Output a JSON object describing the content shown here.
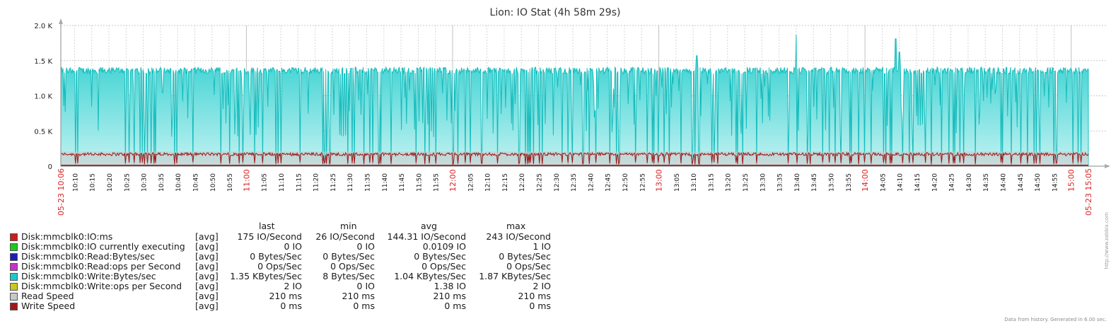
{
  "chart_data": {
    "type": "area",
    "title": "Lion: IO Stat (4h 58m 29s)",
    "x_start": "10:06",
    "x_end": "15:05",
    "x_start_label": "05-23 10:06",
    "x_end_label": "05-23 15:05",
    "x_ticks": [
      "10:10",
      "10:15",
      "10:20",
      "10:25",
      "10:30",
      "10:35",
      "10:40",
      "10:45",
      "10:50",
      "10:55",
      "11:00",
      "11:05",
      "11:10",
      "11:15",
      "11:20",
      "11:25",
      "11:30",
      "11:35",
      "11:40",
      "11:45",
      "11:50",
      "11:55",
      "12:00",
      "12:05",
      "12:10",
      "12:15",
      "12:20",
      "12:25",
      "12:30",
      "12:35",
      "12:40",
      "12:45",
      "12:50",
      "12:55",
      "13:00",
      "13:05",
      "13:10",
      "13:15",
      "13:20",
      "13:25",
      "13:30",
      "13:35",
      "13:40",
      "13:45",
      "13:50",
      "13:55",
      "14:00",
      "14:05",
      "14:10",
      "14:15",
      "14:20",
      "14:25",
      "14:30",
      "14:35",
      "14:40",
      "14:45",
      "14:50",
      "14:55",
      "15:00"
    ],
    "y_ticks": [
      {
        "value": 0,
        "label": "0"
      },
      {
        "value": 500,
        "label": "0.5 K"
      },
      {
        "value": 1000,
        "label": "1.0 K"
      },
      {
        "value": 1500,
        "label": "1.5 K"
      },
      {
        "value": 2000,
        "label": "2.0 K"
      }
    ],
    "ylim": [
      0,
      2000
    ],
    "grid": true,
    "legend_position": "bottom",
    "series": [
      {
        "name": "Disk:mmcblk0:Write:Bytes/sec",
        "approx_plateau": 1380,
        "min": 8,
        "max": 1870,
        "avg": 1040,
        "color": "#1ec8c8"
      },
      {
        "name": "Disk:mmcblk0:IO:ms",
        "approx_level": 175,
        "min": 26,
        "max": 243,
        "avg": 144.31,
        "color": "#a01818"
      },
      {
        "name": "Read Speed",
        "approx_level": 210,
        "color": "#c8c8c8"
      }
    ],
    "peaks": [
      {
        "time": "13:11",
        "value": 1570
      },
      {
        "time": "13:40",
        "value": 1870
      },
      {
        "time": "14:09",
        "value": 1810
      },
      {
        "time": "14:10",
        "value": 1620
      }
    ]
  },
  "legend": {
    "headers": {
      "last": "last",
      "min": "min",
      "avg": "avg",
      "max": "max"
    },
    "items": [
      {
        "name": "Disk:mmcblk0:IO:ms",
        "func": "[avg]",
        "last": "175 IO/Second",
        "min": "26 IO/Second",
        "avg": "144.31 IO/Second",
        "max": "243 IO/Second",
        "color": "#c81e1e"
      },
      {
        "name": "Disk:mmcblk0:IO currently executing",
        "func": "[avg]",
        "last": "0 IO",
        "min": "0 IO",
        "avg": "0.0109 IO",
        "max": "1 IO",
        "color": "#1ec81e"
      },
      {
        "name": "Disk:mmcblk0:Read:Bytes/sec",
        "func": "[avg]",
        "last": "0 Bytes/Sec",
        "min": "0 Bytes/Sec",
        "avg": "0 Bytes/Sec",
        "max": "0 Bytes/Sec",
        "color": "#1e1eb4"
      },
      {
        "name": "Disk:mmcblk0:Read:ops per Second",
        "func": "[avg]",
        "last": "0 Ops/Sec",
        "min": "0 Ops/Sec",
        "avg": "0 Ops/Sec",
        "max": "0 Ops/Sec",
        "color": "#c832c8"
      },
      {
        "name": "Disk:mmcblk0:Write:Bytes/sec",
        "func": "[avg]",
        "last": "1.35 KBytes/Sec",
        "min": "8 Bytes/Sec",
        "avg": "1.04 KBytes/Sec",
        "max": "1.87 KBytes/Sec",
        "color": "#1ec8c8"
      },
      {
        "name": "Disk:mmcblk0:Write:ops per Second",
        "func": "[avg]",
        "last": "2 IO",
        "min": "0 IO",
        "avg": "1.38 IO",
        "max": "2 IO",
        "color": "#c8c81e"
      },
      {
        "name": "Read Speed",
        "func": "[avg]",
        "last": "210 ms",
        "min": "210 ms",
        "avg": "210 ms",
        "max": "210 ms",
        "color": "#c8c8c8"
      },
      {
        "name": "Write Speed",
        "func": "[avg]",
        "last": "0 ms",
        "min": "0 ms",
        "avg": "0 ms",
        "max": "0 ms",
        "color": "#a01818"
      }
    ]
  },
  "footer": "Data from history. Generated in 6.00 sec.",
  "watermark": "http://www.zabbix.com"
}
